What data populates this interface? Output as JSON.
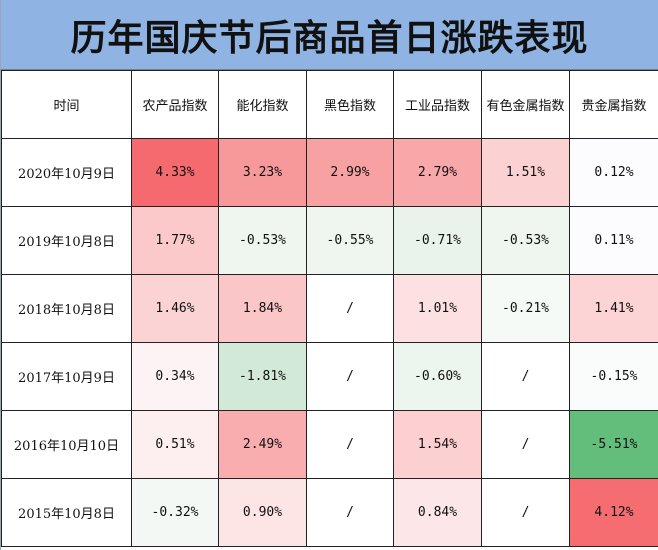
{
  "title": "历年国庆节后商品首日涨跌表现",
  "headers": [
    "时间",
    "农产品指数",
    "能化指数",
    "黑色指数",
    "工业品指数",
    "有色金属指数",
    "贵金属指数"
  ],
  "colors": {
    "title_bg": "#8fb4e3",
    "strong_red": "#f56a6e",
    "red": "#f8a1a3",
    "light_red": "#fbd4d5",
    "pale_red": "#fdeced",
    "faint_red": "#fef6f6",
    "pale_green": "#eef6ef",
    "light_green": "#e0f0e3",
    "green": "#d2e9d7",
    "strong_green": "#63be7b",
    "white": "#ffffff"
  },
  "rows": [
    {
      "date": "2020年10月9日",
      "cells": [
        {
          "text": "4.33%",
          "color": "#f56a6e"
        },
        {
          "text": "3.23%",
          "color": "#f7999b"
        },
        {
          "text": "2.99%",
          "color": "#f8a1a3"
        },
        {
          "text": "2.79%",
          "color": "#f9a8aa"
        },
        {
          "text": "1.51%",
          "color": "#fcd1d2"
        },
        {
          "text": "0.12%",
          "color": "#fcfbfd"
        }
      ]
    },
    {
      "date": "2019年10月8日",
      "cells": [
        {
          "text": "1.77%",
          "color": "#fbc9ca"
        },
        {
          "text": "-0.53%",
          "color": "#eef6ef"
        },
        {
          "text": "-0.55%",
          "color": "#eef6ef"
        },
        {
          "text": "-0.71%",
          "color": "#e9f3eb"
        },
        {
          "text": "-0.53%",
          "color": "#eef6ef"
        },
        {
          "text": "0.11%",
          "color": "#fcfbfd"
        }
      ]
    },
    {
      "date": "2018年10月8日",
      "cells": [
        {
          "text": "1.46%",
          "color": "#fcd3d4"
        },
        {
          "text": "1.84%",
          "color": "#fbc6c7"
        },
        {
          "text": "/",
          "color": "#ffffff"
        },
        {
          "text": "1.01%",
          "color": "#fde1e2"
        },
        {
          "text": "-0.21%",
          "color": "#f6faf7"
        },
        {
          "text": "1.41%",
          "color": "#fcd4d5"
        }
      ]
    },
    {
      "date": "2017年10月9日",
      "cells": [
        {
          "text": "0.34%",
          "color": "#fdf3f4"
        },
        {
          "text": "-1.81%",
          "color": "#d2e9d7"
        },
        {
          "text": "/",
          "color": "#ffffff"
        },
        {
          "text": "-0.60%",
          "color": "#ecf5ee"
        },
        {
          "text": "/",
          "color": "#ffffff"
        },
        {
          "text": "-0.15%",
          "color": "#fafcfb"
        }
      ]
    },
    {
      "date": "2016年10月10日",
      "cells": [
        {
          "text": "0.51%",
          "color": "#fdeeef"
        },
        {
          "text": "2.49%",
          "color": "#f9adaf"
        },
        {
          "text": "/",
          "color": "#ffffff"
        },
        {
          "text": "1.54%",
          "color": "#fcd0d1"
        },
        {
          "text": "/",
          "color": "#ffffff"
        },
        {
          "text": "-5.51%",
          "color": "#63be7b"
        }
      ]
    },
    {
      "date": "2015年10月8日",
      "cells": [
        {
          "text": "-0.32%",
          "color": "#f3f8f4"
        },
        {
          "text": "0.90%",
          "color": "#fde5e6"
        },
        {
          "text": "/",
          "color": "#ffffff"
        },
        {
          "text": "0.84%",
          "color": "#fde6e7"
        },
        {
          "text": "/",
          "color": "#ffffff"
        },
        {
          "text": "4.12%",
          "color": "#f56d71"
        }
      ]
    }
  ]
}
